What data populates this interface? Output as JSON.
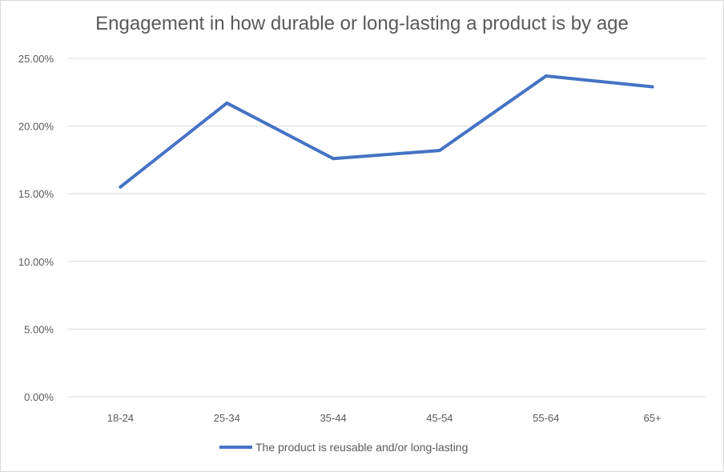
{
  "chart_data": {
    "type": "line",
    "title": "Engagement in how durable or long-lasting a product is by age",
    "categories": [
      "18-24",
      "25-34",
      "35-44",
      "45-54",
      "55-64",
      "65+"
    ],
    "y_ticks": [
      "0.00%",
      "5.00%",
      "10.00%",
      "15.00%",
      "20.00%",
      "25.00%"
    ],
    "ylim": [
      0,
      25
    ],
    "grid": true,
    "legend_position": "bottom",
    "series": [
      {
        "name": "The product is reusable and/or long-lasting",
        "color": "#4472C4",
        "values": [
          15.5,
          21.7,
          17.6,
          18.2,
          23.7,
          22.9
        ]
      }
    ]
  }
}
